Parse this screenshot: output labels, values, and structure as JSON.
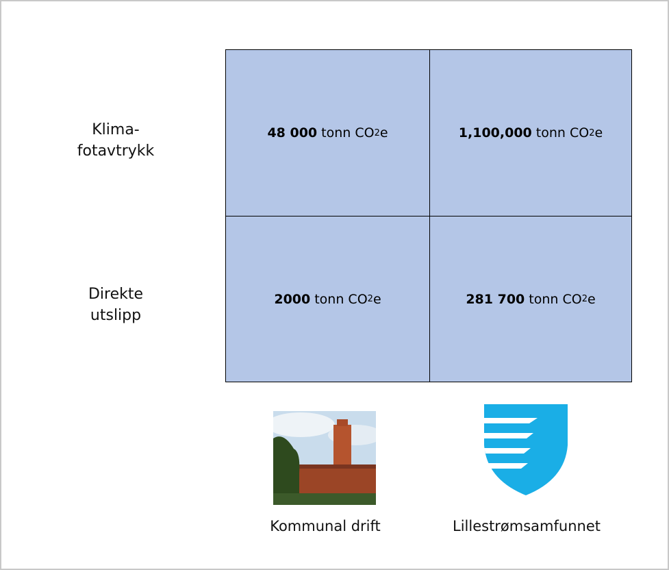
{
  "rows": [
    {
      "label_lines": [
        "Klima-",
        "fotavtrykk"
      ]
    },
    {
      "label_lines": [
        "Direkte",
        "utslipp"
      ]
    }
  ],
  "cells": [
    [
      {
        "value": "48 000",
        "unit": "tonn CO",
        "unit_sub": "2",
        "unit_end": "e"
      },
      {
        "value": "1,100,000",
        "unit": "tonn CO",
        "unit_sub": "2",
        "unit_end": "e"
      }
    ],
    [
      {
        "value": "2000",
        "unit": "tonn CO",
        "unit_sub": "2",
        "unit_end": "e"
      },
      {
        "value": "281 700",
        "unit": "tonn CO",
        "unit_sub": "2",
        "unit_end": "e"
      }
    ]
  ],
  "columns": [
    "Kommunal drift",
    "Lillestrømsamfunnet"
  ]
}
